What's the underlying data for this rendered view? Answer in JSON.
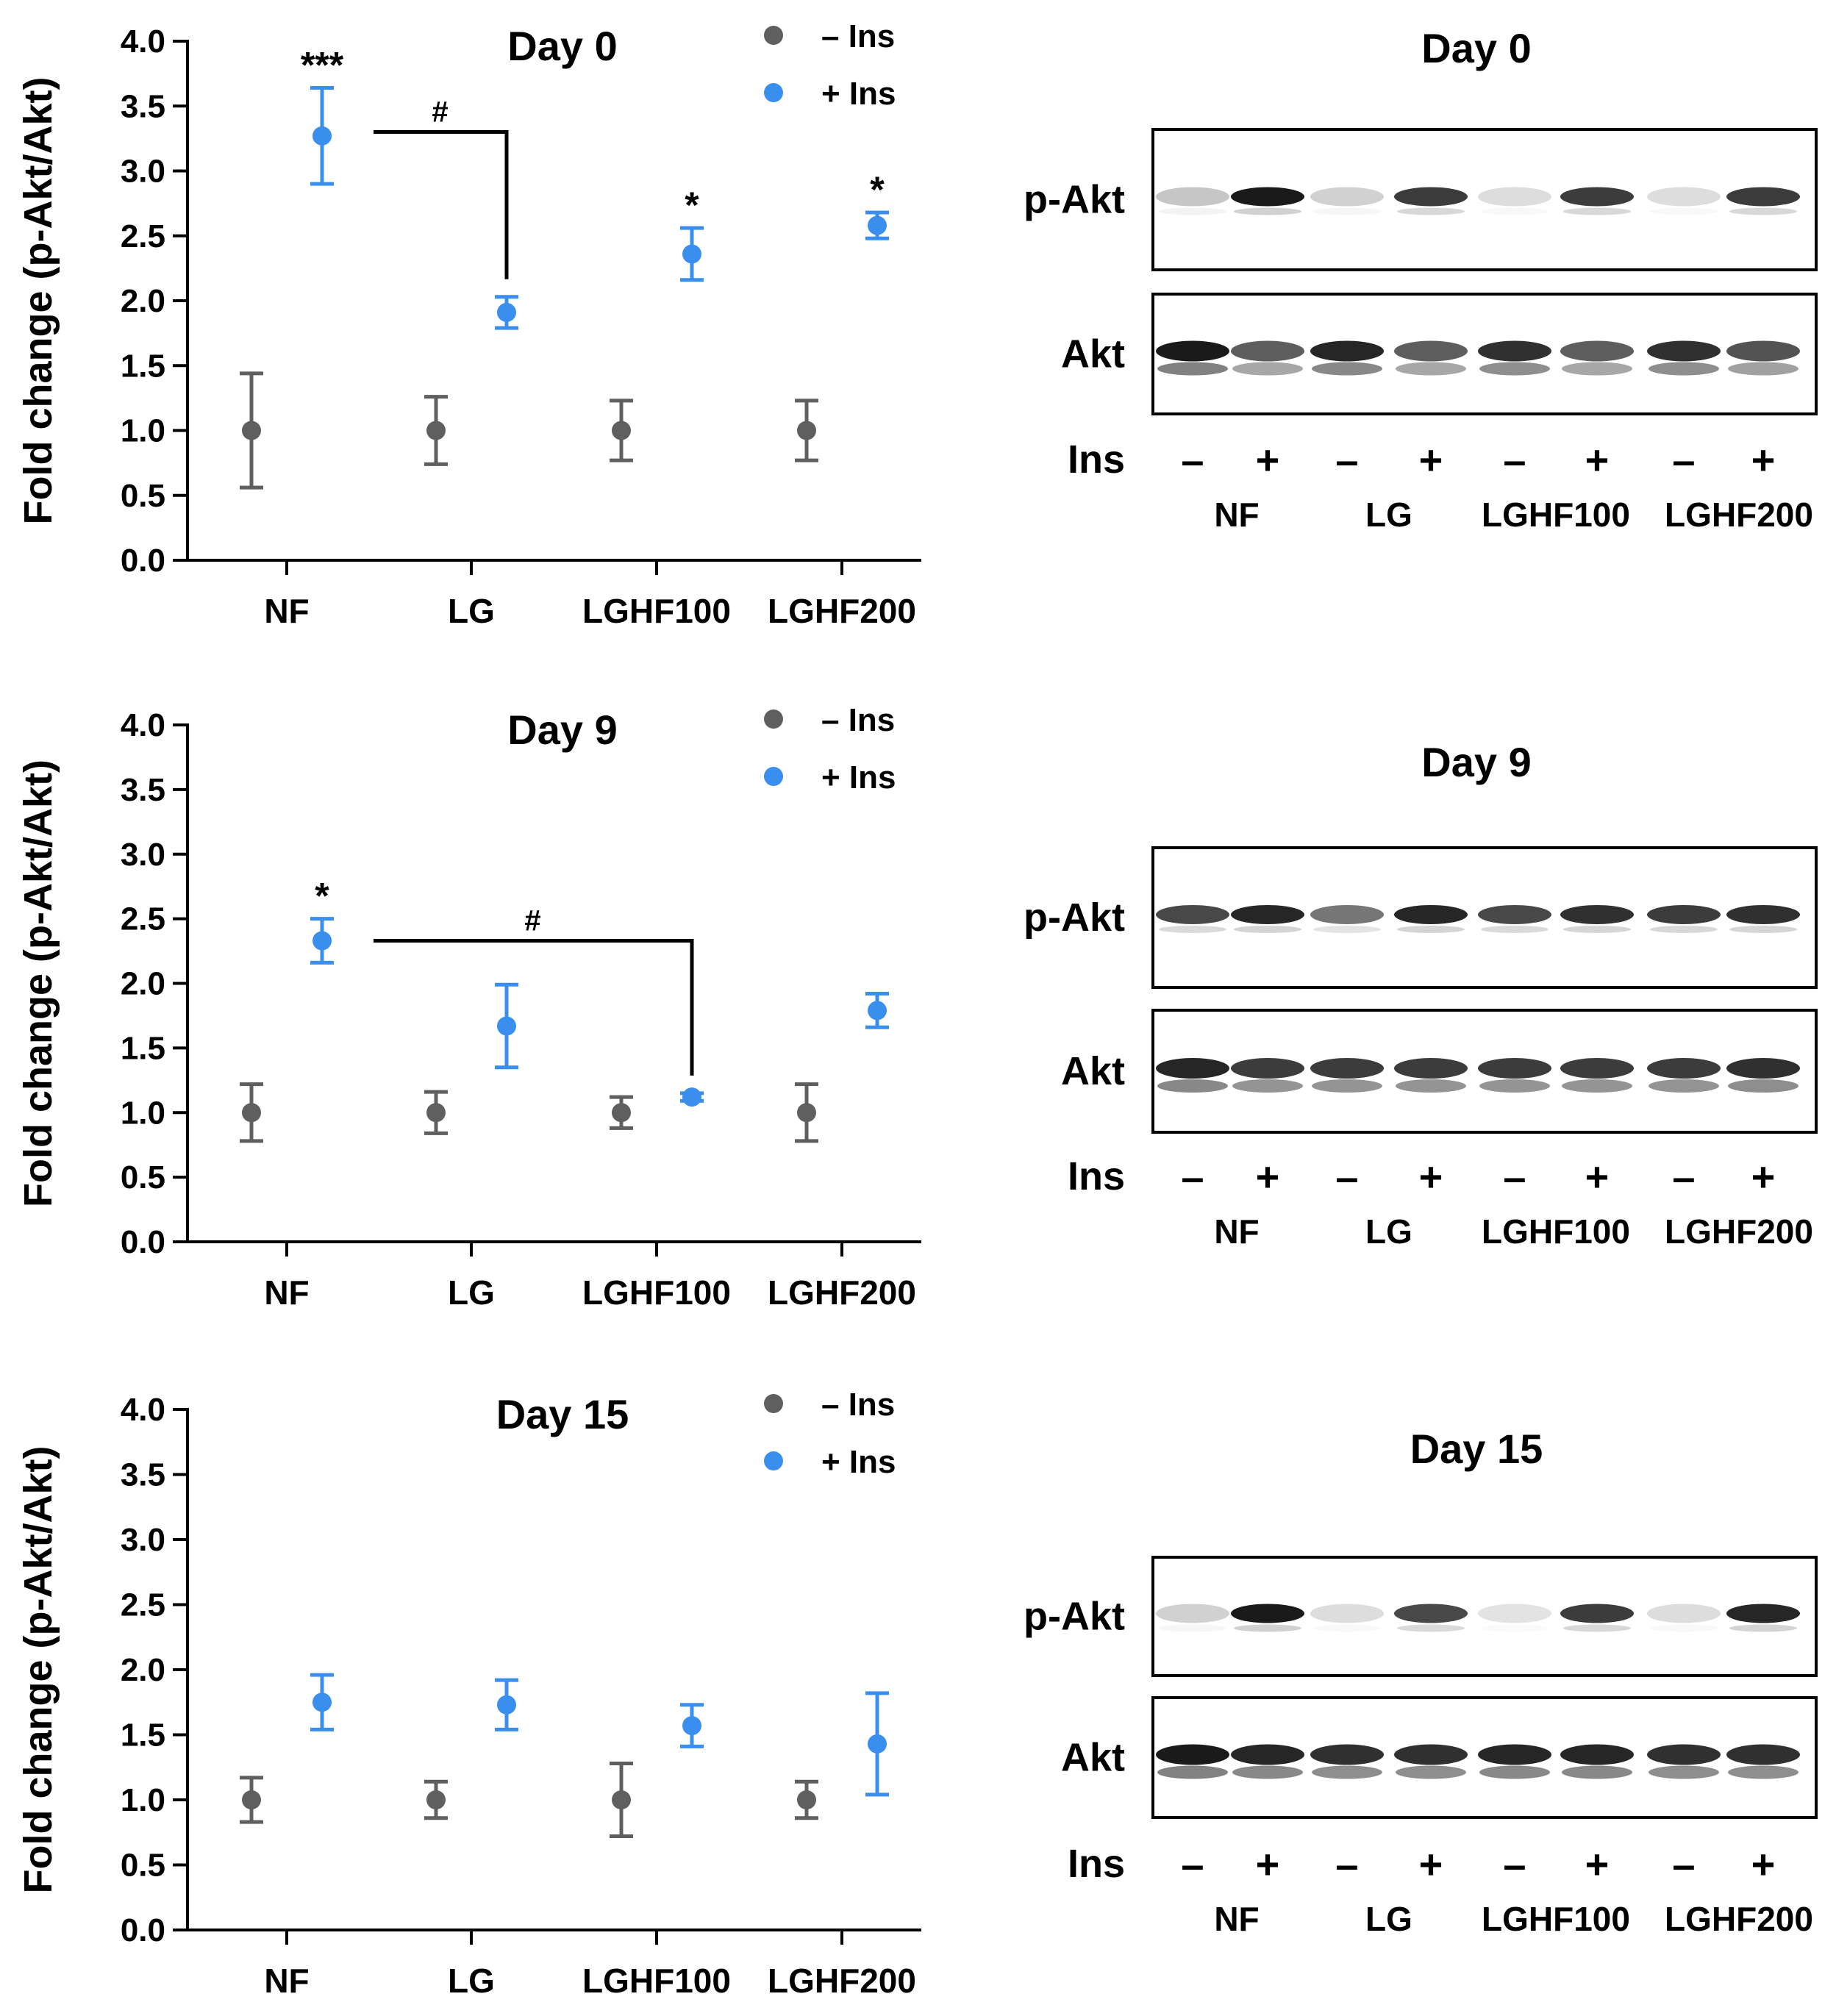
{
  "colors": {
    "minus_ins": "#5f5f5f",
    "plus_ins": "#3a8fee",
    "axis": "#000000",
    "blot_band": "#1a1a1a"
  },
  "legend": {
    "minus": "– Ins",
    "plus": "+ Ins"
  },
  "blots": [
    {
      "title": "Day 0",
      "rows": [
        "p-Akt",
        "Akt"
      ],
      "ins_label": "Ins",
      "signs": [
        "–",
        "+",
        "–",
        "+",
        "–",
        "+",
        "–",
        "+"
      ],
      "groups": [
        "NF",
        "LG",
        "LGHF100",
        "LGHF200"
      ]
    },
    {
      "title": "Day 9",
      "rows": [
        "p-Akt",
        "Akt"
      ],
      "ins_label": "Ins",
      "signs": [
        "–",
        "+",
        "–",
        "+",
        "–",
        "+",
        "–",
        "+"
      ],
      "groups": [
        "NF",
        "LG",
        "LGHF100",
        "LGHF200"
      ]
    },
    {
      "title": "Day 15",
      "rows": [
        "p-Akt",
        "Akt"
      ],
      "ins_label": "Ins",
      "signs": [
        "–",
        "+",
        "–",
        "+",
        "–",
        "+",
        "–",
        "+"
      ],
      "groups": [
        "NF",
        "LG",
        "LGHF100",
        "LGHF200"
      ]
    }
  ],
  "chart_data": [
    {
      "type": "scatter",
      "title": "Day 0",
      "ylabel": "Fold change (p-Akt/Akt)",
      "xlabel": "",
      "categories": [
        "NF",
        "LG",
        "LGHF100",
        "LGHF200"
      ],
      "ylim": [
        0,
        4.0
      ],
      "yticks": [
        "0.0",
        "0.5",
        "1.0",
        "1.5",
        "2.0",
        "2.5",
        "3.0",
        "3.5",
        "4.0"
      ],
      "series": [
        {
          "name": "– Ins",
          "values": [
            1.0,
            1.0,
            1.0,
            1.0
          ],
          "errors": [
            0.44,
            0.26,
            0.23,
            0.23
          ]
        },
        {
          "name": "+ Ins",
          "values": [
            3.27,
            1.91,
            2.36,
            2.58
          ],
          "errors": [
            0.37,
            0.12,
            0.2,
            0.1
          ]
        }
      ],
      "significance": [
        {
          "category": 0,
          "label": "***"
        },
        {
          "category": 2,
          "label": "*"
        },
        {
          "category": 3,
          "label": "*"
        }
      ],
      "bracket": {
        "from_category": 0,
        "to_category": 1,
        "y": 3.3,
        "label": "#"
      }
    },
    {
      "type": "scatter",
      "title": "Day 9",
      "ylabel": "Fold change (p-Akt/Akt)",
      "xlabel": "",
      "categories": [
        "NF",
        "LG",
        "LGHF100",
        "LGHF200"
      ],
      "ylim": [
        0,
        4.0
      ],
      "yticks": [
        "0.0",
        "0.5",
        "1.0",
        "1.5",
        "2.0",
        "2.5",
        "3.0",
        "3.5",
        "4.0"
      ],
      "series": [
        {
          "name": "– Ins",
          "values": [
            1.0,
            1.0,
            1.0,
            1.0
          ],
          "errors": [
            0.22,
            0.16,
            0.12,
            0.22
          ]
        },
        {
          "name": "+ Ins",
          "values": [
            2.33,
            1.67,
            1.12,
            1.79
          ],
          "errors": [
            0.17,
            0.32,
            0.03,
            0.13
          ]
        }
      ],
      "significance": [
        {
          "category": 0,
          "label": "*"
        }
      ],
      "bracket": {
        "from_category": 0,
        "to_category": 2,
        "y": 2.33,
        "label": "#"
      }
    },
    {
      "type": "scatter",
      "title": "Day 15",
      "ylabel": "Fold change (p-Akt/Akt)",
      "xlabel": "",
      "categories": [
        "NF",
        "LG",
        "LGHF100",
        "LGHF200"
      ],
      "ylim": [
        0,
        4.0
      ],
      "yticks": [
        "0.0",
        "0.5",
        "1.0",
        "1.5",
        "2.0",
        "2.5",
        "3.0",
        "3.5",
        "4.0"
      ],
      "series": [
        {
          "name": "– Ins",
          "values": [
            1.0,
            1.0,
            1.0,
            1.0
          ],
          "errors": [
            0.17,
            0.14,
            0.28,
            0.14
          ]
        },
        {
          "name": "+ Ins",
          "values": [
            1.75,
            1.73,
            1.57,
            1.43
          ],
          "errors": [
            0.21,
            0.19,
            0.16,
            0.39
          ]
        }
      ],
      "significance": [],
      "bracket": null
    }
  ]
}
